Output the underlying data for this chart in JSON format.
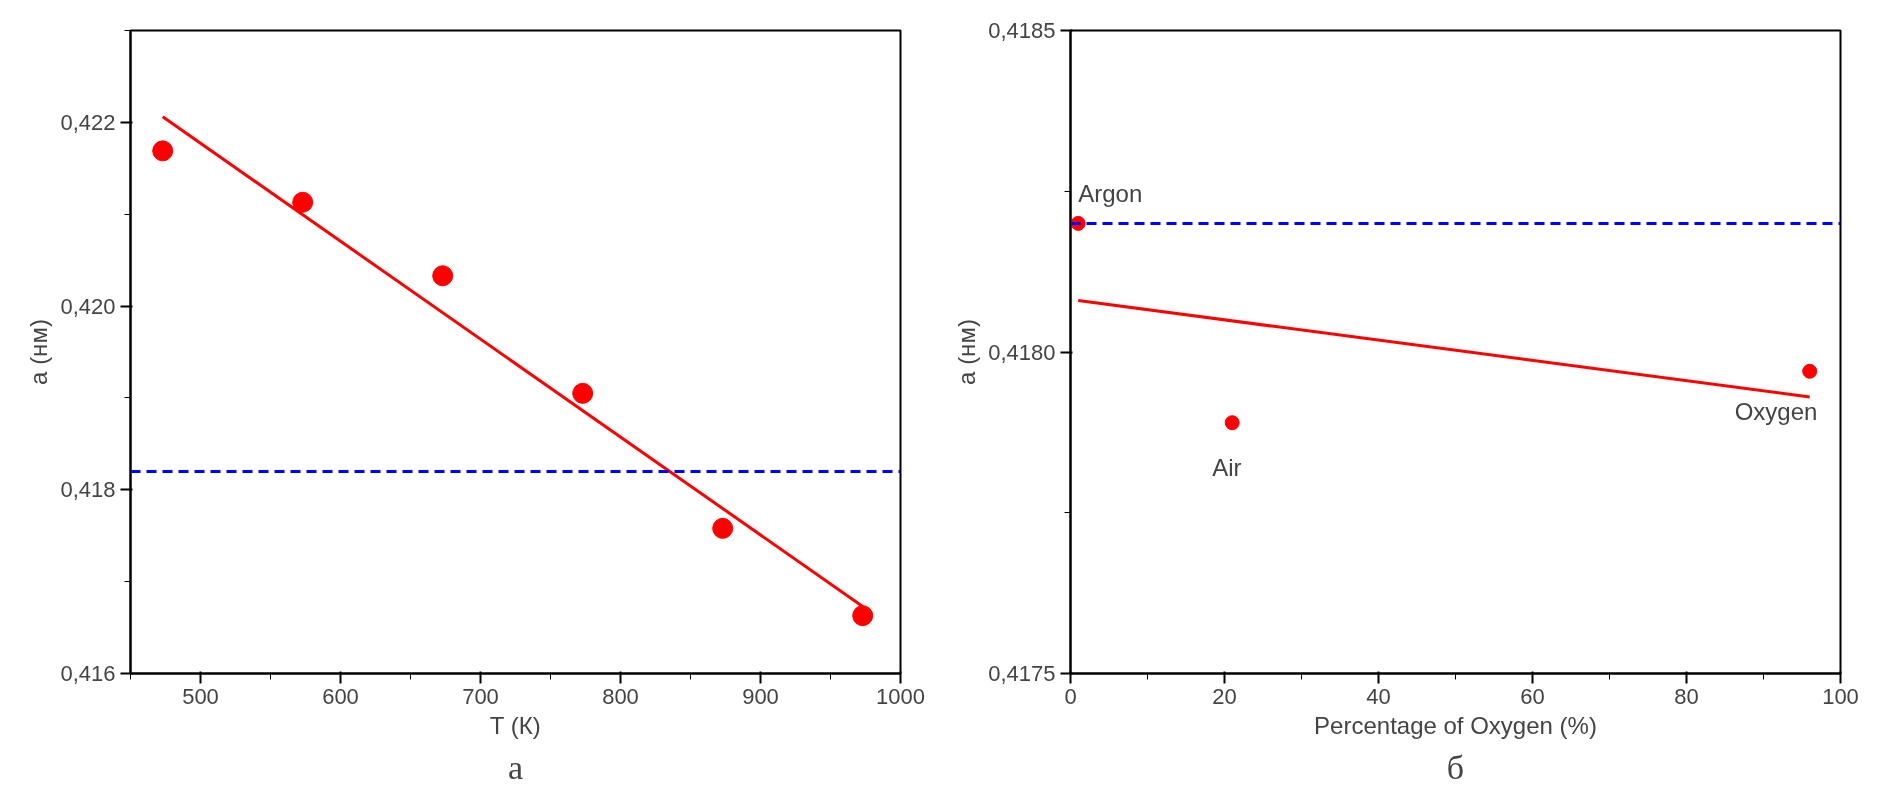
{
  "chart_data": [
    {
      "type": "scatter",
      "xlabel": "T (К)",
      "ylabel": "a (нм)",
      "grid": false,
      "xlim": [
        450,
        1000
      ],
      "xticks": [
        500,
        600,
        700,
        800,
        900,
        1000
      ],
      "ylim": [
        0.416,
        0.423
      ],
      "yticks": [
        {
          "value": 0.416,
          "label": "0,416"
        },
        {
          "value": 0.418,
          "label": "0,418"
        },
        {
          "value": 0.42,
          "label": "0,420"
        },
        {
          "value": 0.422,
          "label": "0,422"
        }
      ],
      "series": [
        {
          "marker": "circle",
          "color": "#ff0000",
          "x": [
            473,
            573,
            673,
            773,
            873,
            973
          ],
          "values": [
            0.42169,
            0.42113,
            0.42033,
            0.41905,
            0.41758,
            0.41663
          ]
        },
        {
          "type": "line",
          "color": "#ff0000",
          "x": [
            473,
            973
          ],
          "values": [
            0.42206,
            0.41673
          ]
        }
      ],
      "ref_lines": [
        {
          "axis": "y",
          "value": 0.4182,
          "color": "#0000ff",
          "line_style": "dashed"
        }
      ],
      "annotations": [
        "а"
      ]
    },
    {
      "type": "scatter",
      "xlabel": "Percentage of Oxygen (%)",
      "ylabel": "a (нм)",
      "grid": false,
      "xlim": [
        0,
        100
      ],
      "xticks": [
        0,
        20,
        40,
        60,
        80,
        100
      ],
      "ylim": [
        0.4175,
        0.4185
      ],
      "yticks": [
        {
          "value": 0.4175,
          "label": "0,4175"
        },
        {
          "value": 0.418,
          "label": "0,4180"
        },
        {
          "value": 0.4185,
          "label": "0,4185"
        }
      ],
      "series": [
        {
          "marker": "circle",
          "color": "#ff0000",
          "x": [
            1,
            21,
            96
          ],
          "values": [
            0.4182,
            0.41789,
            0.41797
          ]
        },
        {
          "type": "line",
          "color": "#ff0000",
          "x": [
            1,
            96
          ],
          "values": [
            0.41808,
            0.41793
          ]
        }
      ],
      "ref_lines": [
        {
          "axis": "y",
          "value": 0.4182,
          "color": "#0000ff",
          "line_style": "dashed"
        }
      ],
      "annotations": [
        {
          "text": "Argon",
          "x": 1,
          "y": 0.4182
        },
        {
          "text": "Air",
          "x": 21,
          "y": 0.41789
        },
        {
          "text": "Oxygen",
          "x": 96,
          "y": 0.41797
        },
        "б"
      ]
    }
  ]
}
